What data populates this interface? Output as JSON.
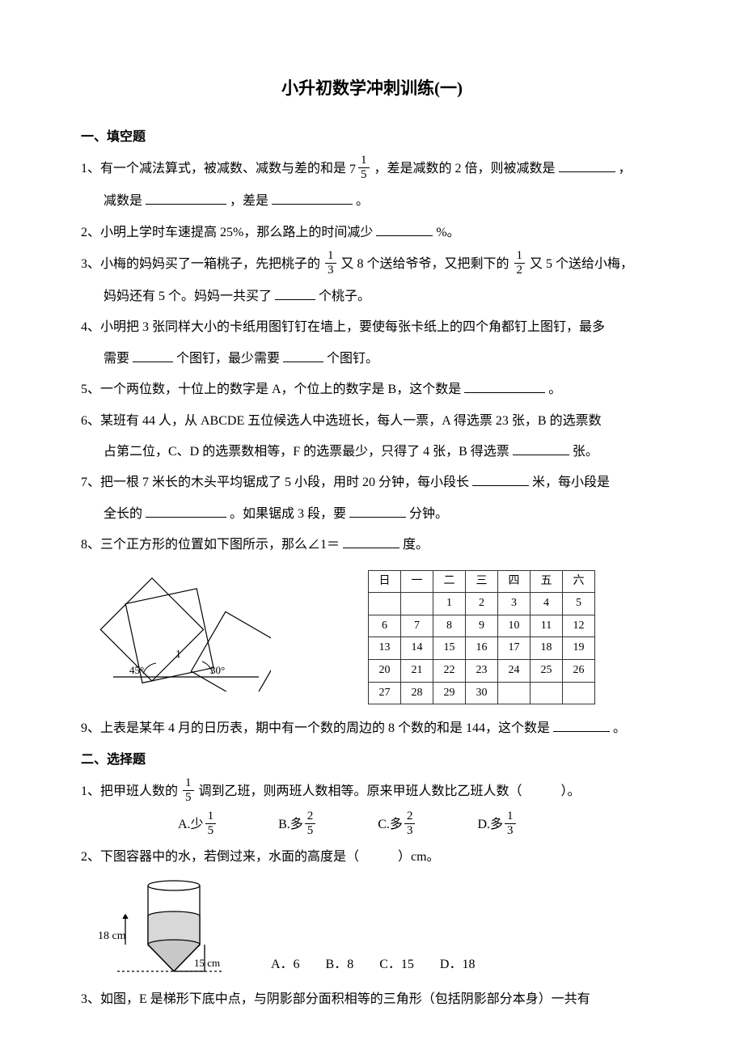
{
  "title": "小升初数学冲刺训练(一)",
  "s1": {
    "head": "一、填空题",
    "q1a": "1、有一个减法算式，被减数、减数与差的和是",
    "q1_mixed_whole": "7",
    "q1_mixed_num": "1",
    "q1_mixed_den": "5",
    "q1b": "，差是减数的 2 倍，则被减数是",
    "q1c": "，",
    "q1_line2a": "减数是",
    "q1_line2b": "，差是",
    "q1_line2c": "。",
    "q2a": "2、小明上学时车速提高 25%，那么路上的时间减少",
    "q2b": "%。",
    "q3a": "3、小梅的妈妈买了一箱桃子，先把桃子的",
    "q3_f1n": "1",
    "q3_f1d": "3",
    "q3b": "又 8 个送给爷爷，又把剩下的",
    "q3_f2n": "1",
    "q3_f2d": "2",
    "q3c": "又 5 个送给小梅，",
    "q3_line2a": "妈妈还有 5 个。妈妈一共买了",
    "q3_line2b": "个桃子。",
    "q4a": "4、小明把 3 张同样大小的卡纸用图钉钉在墙上，要使每张卡纸上的四个角都钉上图钉，最多",
    "q4_line2a": "需要",
    "q4_line2b": "个图钉，最少需要",
    "q4_line2c": "个图钉。",
    "q5a": "5、一个两位数，十位上的数字是 A，个位上的数字是 B，这个数是",
    "q5b": "。",
    "q6a": "6、某班有 44 人，从 ABCDE 五位候选人中选班长，每人一票，A 得选票 23 张，B 的选票数",
    "q6_line2a": "占第二位，C、D 的选票数相等，F 的选票最少，只得了 4 张，B 得选票",
    "q6_line2b": "张。",
    "q7a": "7、把一根 7 米长的木头平均锯成了 5 小段，用时 20 分钟，每小段长",
    "q7b": "米，每小段是",
    "q7_line2a": "全长的",
    "q7_line2b": "。如果锯成 3 段，要",
    "q7_line2c": "分钟。",
    "q8a": "8、三个正方形的位置如下图所示，那么∠1＝",
    "q8b": "度。",
    "q8_angle1": "45°",
    "q8_angle2": "30°",
    "q8_label": "1",
    "calendar": {
      "head": [
        "日",
        "一",
        "二",
        "三",
        "四",
        "五",
        "六"
      ],
      "rows": [
        [
          "",
          "",
          "1",
          "2",
          "3",
          "4",
          "5"
        ],
        [
          "6",
          "7",
          "8",
          "9",
          "10",
          "11",
          "12"
        ],
        [
          "13",
          "14",
          "15",
          "16",
          "17",
          "18",
          "19"
        ],
        [
          "20",
          "21",
          "22",
          "23",
          "24",
          "25",
          "26"
        ],
        [
          "27",
          "28",
          "29",
          "30",
          "",
          "",
          ""
        ]
      ]
    },
    "q9a": "9、上表是某年 4 月的日历表，期中有一个数的周边的 8 个数的和是 144，这个数是",
    "q9b": "。"
  },
  "s2": {
    "head": "二、选择题",
    "q1a": "1、把甲班人数的",
    "q1_fn": "1",
    "q1_fd": "5",
    "q1b": "调到乙班，则两班人数相等。原来甲班人数比乙班人数（　　　）。",
    "optA_pre": "A.少",
    "optA_n": "1",
    "optA_d": "5",
    "optB_pre": "B.多",
    "optB_n": "2",
    "optB_d": "5",
    "optC_pre": "C.多",
    "optC_n": "2",
    "optC_d": "3",
    "optD_pre": "D.多",
    "optD_n": "1",
    "optD_d": "3",
    "q2": "2、下图容器中的水，若倒过来，水面的高度是（　　　）cm。",
    "q2_label1": "18 cm",
    "q2_label2": "15 cm",
    "q2_opts": "A．6　　B．8　　C．15　　D．18",
    "q3": "3、如图，E 是梯形下底中点，与阴影部分面积相等的三角形（包括阴影部分本身）一共有"
  },
  "colors": {
    "text": "#000000",
    "bg": "#ffffff",
    "border": "#333333"
  }
}
